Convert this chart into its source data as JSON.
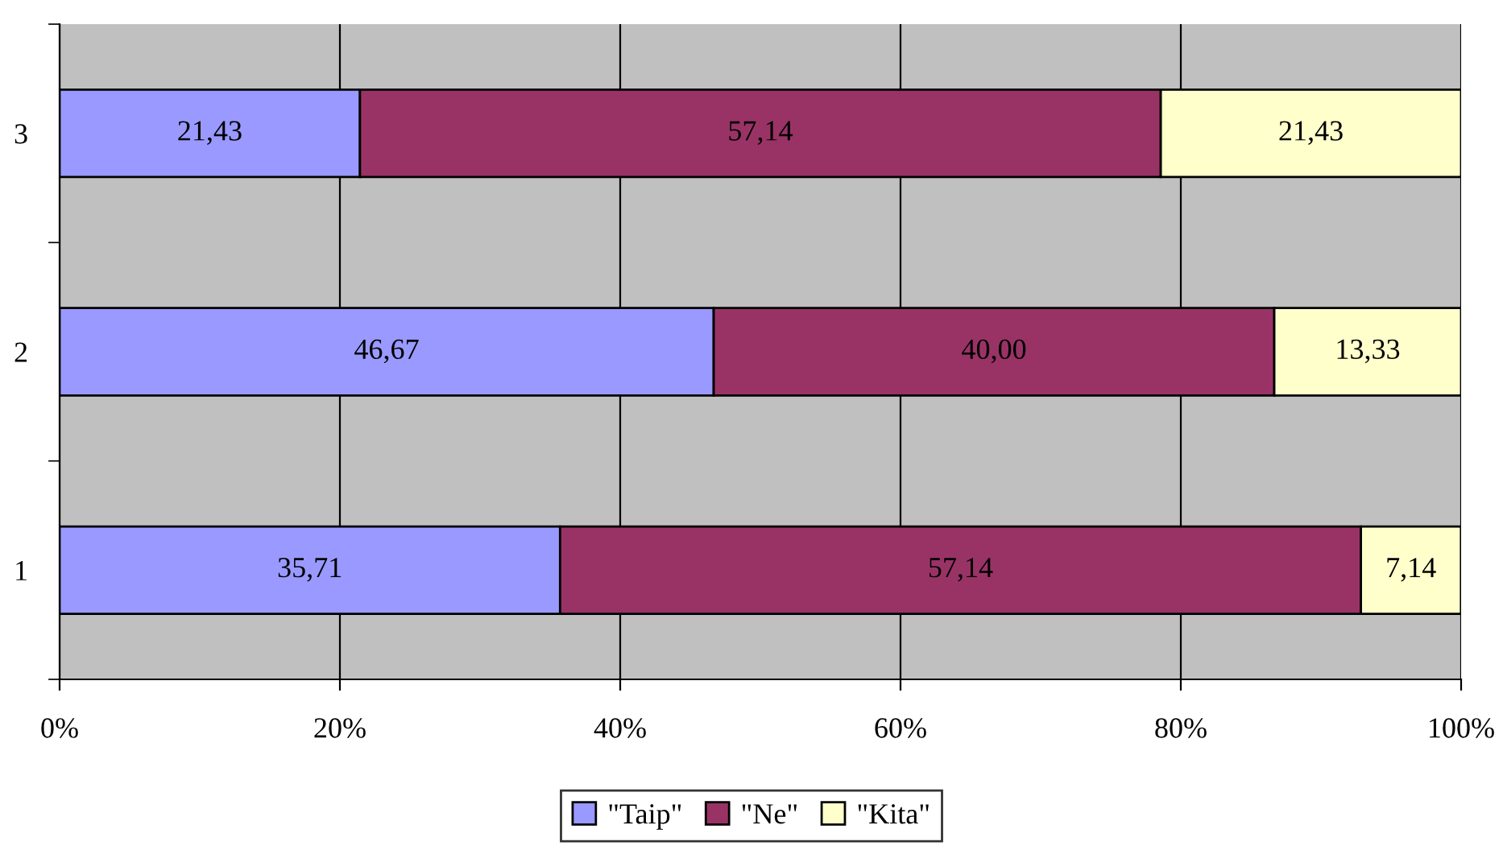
{
  "chart_data": {
    "type": "bar",
    "orientation": "horizontal",
    "stacked": true,
    "categories": [
      "3",
      "2",
      "1"
    ],
    "series": [
      {
        "name": "\"Taip\"",
        "color": "#9999ff",
        "values": [
          21.43,
          46.67,
          35.71
        ],
        "value_labels": [
          "21,43",
          "46,67",
          "35,71"
        ]
      },
      {
        "name": "\"Ne\"",
        "color": "#993366",
        "values": [
          57.14,
          40.0,
          57.14
        ],
        "value_labels": [
          "57,14",
          "40,00",
          "57,14"
        ]
      },
      {
        "name": "\"Kita\"",
        "color": "#ffffcc",
        "values": [
          21.43,
          13.33,
          7.14
        ],
        "value_labels": [
          "21,43",
          "13,33",
          "7,14"
        ]
      }
    ],
    "xlim": [
      0,
      100
    ],
    "xticks": [
      {
        "value": 0,
        "label": "0%"
      },
      {
        "value": 20,
        "label": "20%"
      },
      {
        "value": 40,
        "label": "40%"
      },
      {
        "value": 60,
        "label": "60%"
      },
      {
        "value": 80,
        "label": "80%"
      },
      {
        "value": 100,
        "label": "100%"
      }
    ],
    "grid": "x",
    "legend": "bottom"
  }
}
